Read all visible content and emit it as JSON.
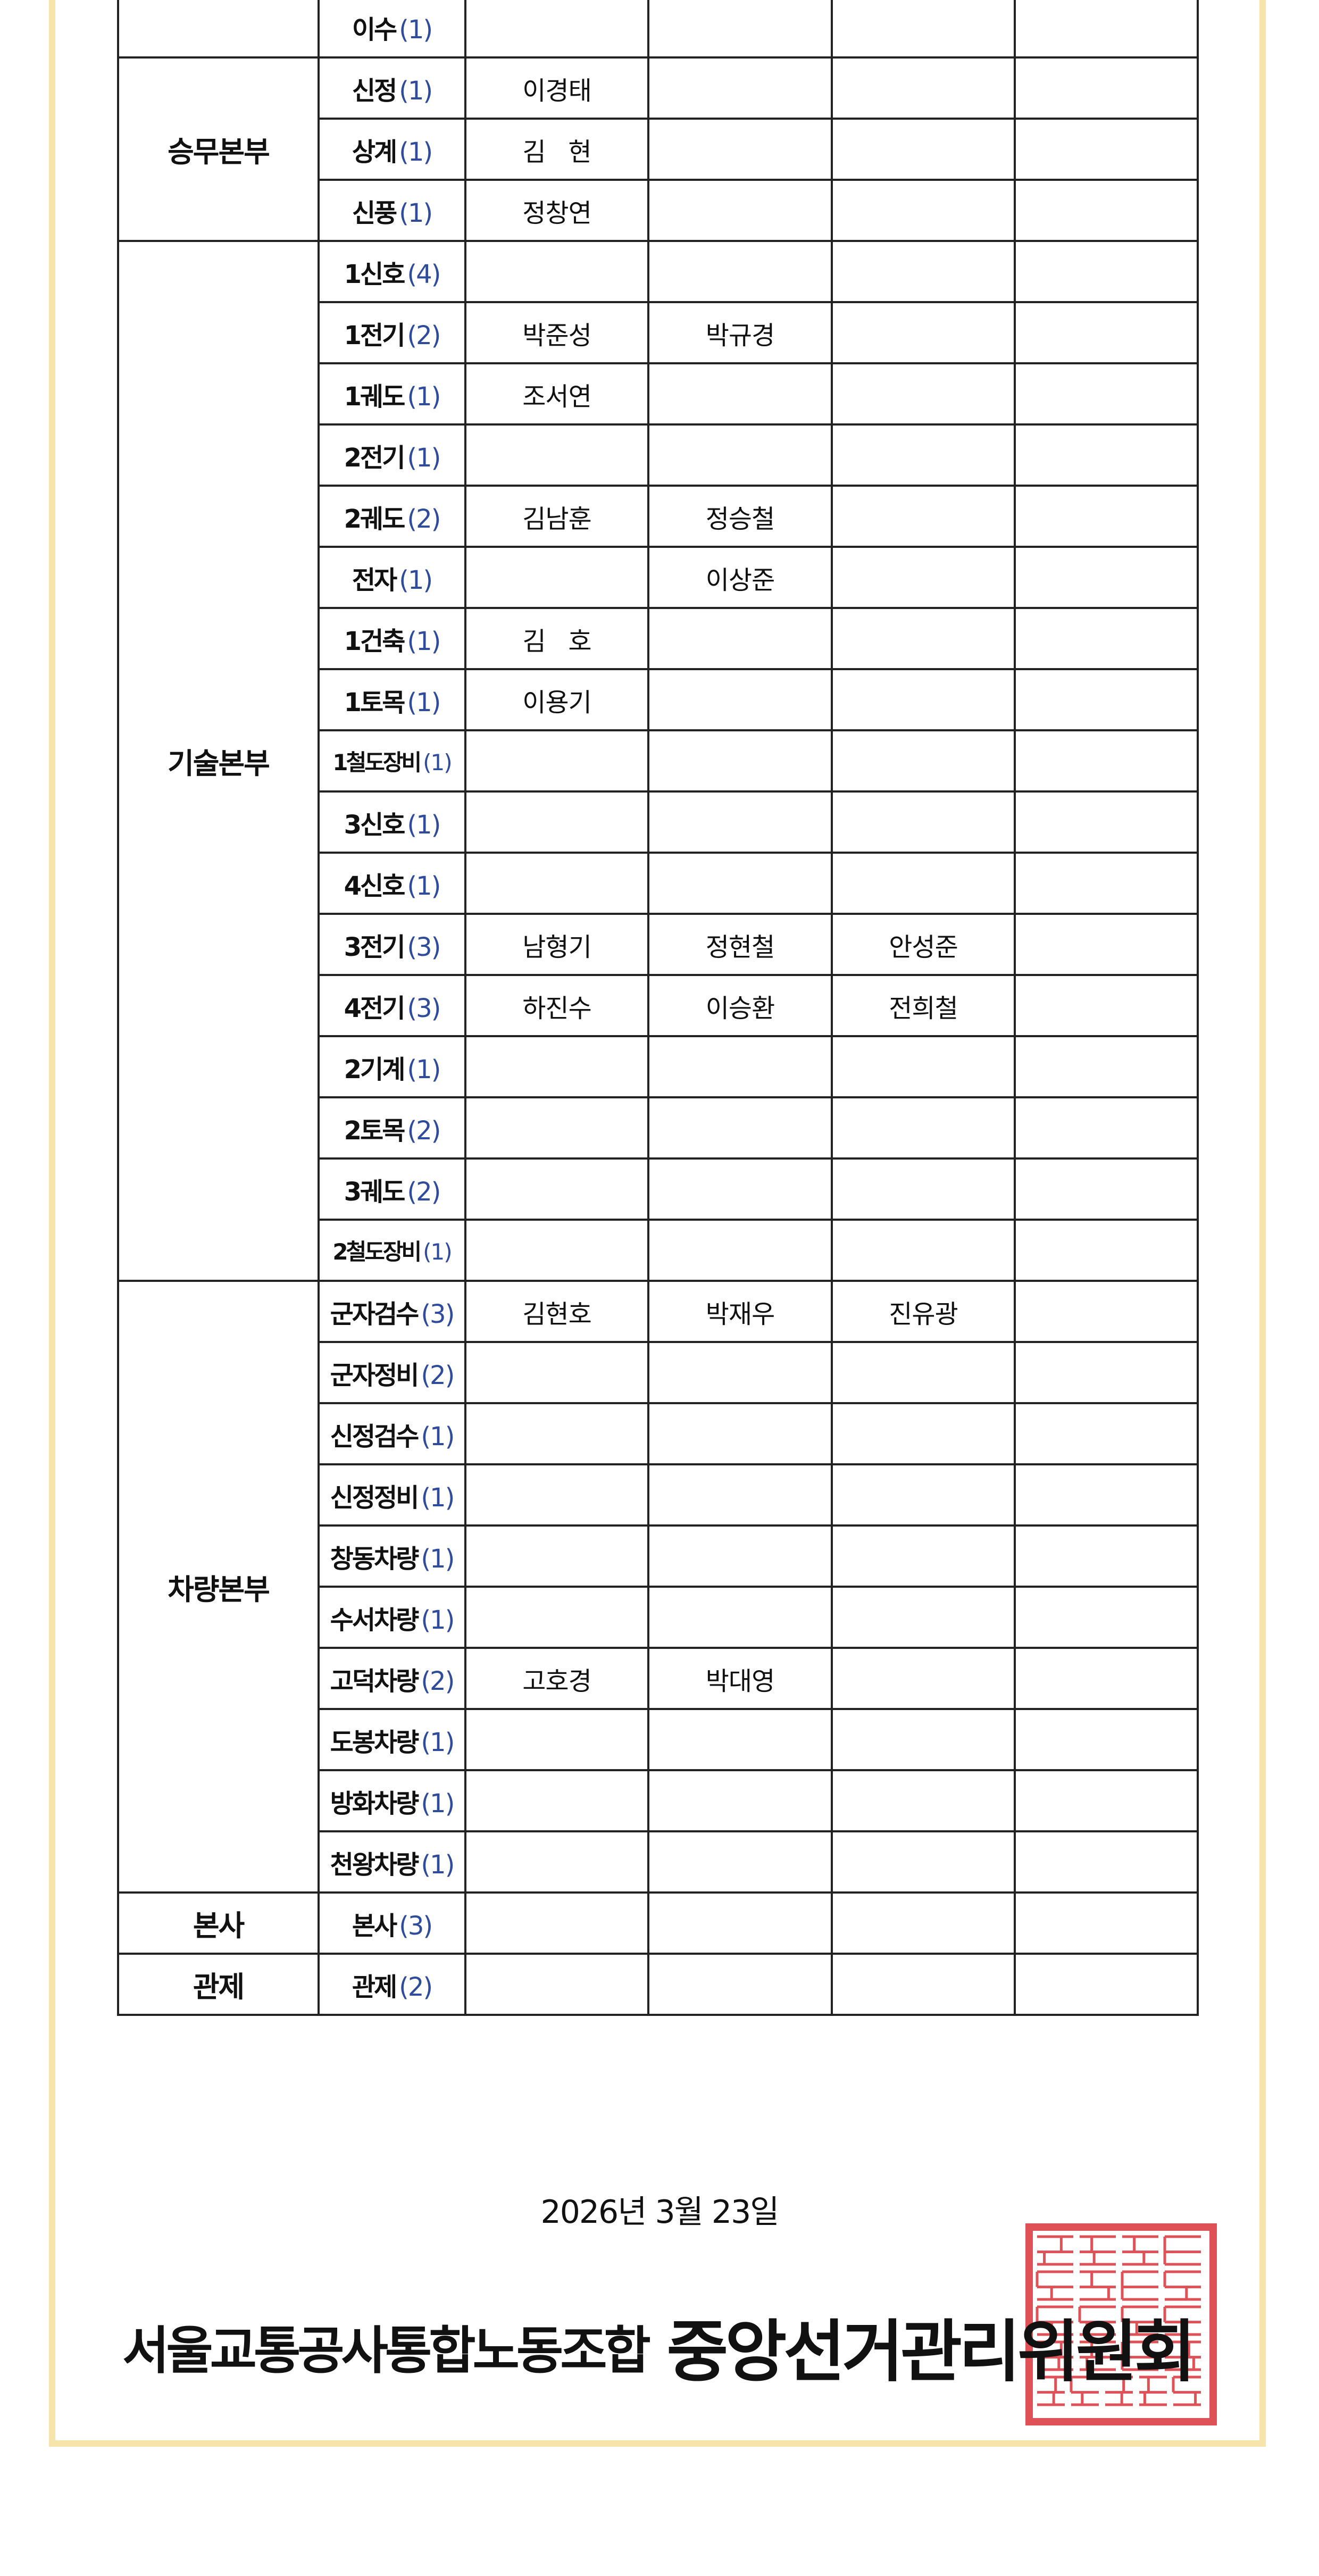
{
  "roster": {
    "groups": [
      {
        "name": "",
        "units": [
          {
            "unit": "이수",
            "count": "(1)",
            "names": [
              "",
              "",
              "",
              ""
            ]
          }
        ]
      },
      {
        "name": "승무본부",
        "units": [
          {
            "unit": "신정",
            "count": "(1)",
            "names": [
              "이경태",
              "",
              "",
              ""
            ]
          },
          {
            "unit": "상계",
            "count": "(1)",
            "names": [
              "김   현",
              "",
              "",
              ""
            ]
          },
          {
            "unit": "신풍",
            "count": "(1)",
            "names": [
              "정창연",
              "",
              "",
              ""
            ]
          }
        ]
      },
      {
        "name": "기술본부",
        "units": [
          {
            "unit": "1신호",
            "count": "(4)",
            "names": [
              "",
              "",
              "",
              ""
            ]
          },
          {
            "unit": "1전기",
            "count": "(2)",
            "names": [
              "박준성",
              "박규경",
              "",
              ""
            ]
          },
          {
            "unit": "1궤도",
            "count": "(1)",
            "names": [
              "조서연",
              "",
              "",
              ""
            ]
          },
          {
            "unit": "2전기",
            "count": "(1)",
            "names": [
              "",
              "",
              "",
              ""
            ]
          },
          {
            "unit": "2궤도",
            "count": "(2)",
            "names": [
              "김남훈",
              "정승철",
              "",
              ""
            ]
          },
          {
            "unit": "전자",
            "count": "(1)",
            "names": [
              "",
              "이상준",
              "",
              ""
            ]
          },
          {
            "unit": "1건축",
            "count": "(1)",
            "names": [
              "김   호",
              "",
              "",
              ""
            ]
          },
          {
            "unit": "1토목",
            "count": "(1)",
            "names": [
              "이용기",
              "",
              "",
              ""
            ]
          },
          {
            "unit": "1철도장비",
            "count": "(1)",
            "names": [
              "",
              "",
              "",
              ""
            ]
          },
          {
            "unit": "3신호",
            "count": "(1)",
            "names": [
              "",
              "",
              "",
              ""
            ]
          },
          {
            "unit": "4신호",
            "count": "(1)",
            "names": [
              "",
              "",
              "",
              ""
            ]
          },
          {
            "unit": "3전기",
            "count": "(3)",
            "names": [
              "남형기",
              "정현철",
              "안성준",
              ""
            ]
          },
          {
            "unit": "4전기",
            "count": "(3)",
            "names": [
              "하진수",
              "이승환",
              "전희철",
              ""
            ]
          },
          {
            "unit": "2기계",
            "count": "(1)",
            "names": [
              "",
              "",
              "",
              ""
            ]
          },
          {
            "unit": "2토목",
            "count": "(2)",
            "names": [
              "",
              "",
              "",
              ""
            ]
          },
          {
            "unit": "3궤도",
            "count": "(2)",
            "names": [
              "",
              "",
              "",
              ""
            ]
          },
          {
            "unit": "2철도장비",
            "count": "(1)",
            "names": [
              "",
              "",
              "",
              ""
            ]
          }
        ]
      },
      {
        "name": "차량본부",
        "units": [
          {
            "unit": "군자검수",
            "count": "(3)",
            "names": [
              "김현호",
              "박재우",
              "진유광",
              ""
            ]
          },
          {
            "unit": "군자정비",
            "count": "(2)",
            "names": [
              "",
              "",
              "",
              ""
            ]
          },
          {
            "unit": "신정검수",
            "count": "(1)",
            "names": [
              "",
              "",
              "",
              ""
            ]
          },
          {
            "unit": "신정정비",
            "count": "(1)",
            "names": [
              "",
              "",
              "",
              ""
            ]
          },
          {
            "unit": "창동차량",
            "count": "(1)",
            "names": [
              "",
              "",
              "",
              ""
            ]
          },
          {
            "unit": "수서차량",
            "count": "(1)",
            "names": [
              "",
              "",
              "",
              ""
            ]
          },
          {
            "unit": "고덕차량",
            "count": "(2)",
            "names": [
              "고호경",
              "박대영",
              "",
              ""
            ]
          },
          {
            "unit": "도봉차량",
            "count": "(1)",
            "names": [
              "",
              "",
              "",
              ""
            ]
          },
          {
            "unit": "방화차량",
            "count": "(1)",
            "names": [
              "",
              "",
              "",
              ""
            ]
          },
          {
            "unit": "천왕차량",
            "count": "(1)",
            "names": [
              "",
              "",
              "",
              ""
            ]
          }
        ]
      },
      {
        "name": "본사",
        "units": [
          {
            "unit": "본사",
            "count": "(3)",
            "names": [
              "",
              "",
              "",
              ""
            ]
          }
        ]
      },
      {
        "name": "관제",
        "units": [
          {
            "unit": "관제",
            "count": "(2)",
            "names": [
              "",
              "",
              "",
              ""
            ]
          }
        ]
      }
    ]
  },
  "footer": {
    "date": "2026년 3월 23일",
    "organization": "서울교통공사통합노동조합",
    "committee": "중앙선거관리위원회",
    "stamp_text": [
      "서울교통",
      "공사통합",
      "노동조합",
      "중앙선거",
      "관리위원회"
    ],
    "stamp_color": "#d9343a"
  },
  "colors": {
    "count_text": "#2f4b9c",
    "frame_border": "#f6e4ab"
  }
}
